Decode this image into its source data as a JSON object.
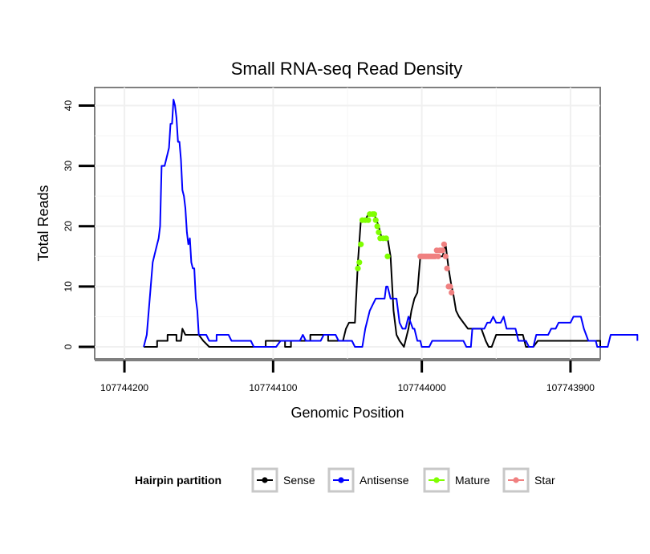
{
  "chart_data": {
    "type": "line",
    "title": "Small RNA-seq Read Density",
    "xlabel": "Genomic Position",
    "ylabel": "Total Reads",
    "xlim": [
      107744220,
      107743880
    ],
    "ylim": [
      -2,
      43
    ],
    "x_reversed": true,
    "grid": true,
    "x_ticks": [
      {
        "value": 107744200,
        "label": "107744200"
      },
      {
        "value": 107744100,
        "label": "107744100"
      },
      {
        "value": 107744000,
        "label": "107744000"
      },
      {
        "value": 107743900,
        "label": "107743900"
      }
    ],
    "y_ticks": [
      {
        "value": 0,
        "label": "0"
      },
      {
        "value": 10,
        "label": "10"
      },
      {
        "value": 20,
        "label": "20"
      },
      {
        "value": 30,
        "label": "30"
      },
      {
        "value": 40,
        "label": "40"
      }
    ],
    "legend": {
      "title": "Hairpin partition",
      "placement": "bottom",
      "entries": [
        {
          "name": "Sense",
          "color": "#000000"
        },
        {
          "name": "Antisense",
          "color": "#0000ff"
        },
        {
          "name": "Mature",
          "color": "#7fff00"
        },
        {
          "name": "Star",
          "color": "#f08080"
        }
      ]
    },
    "series": [
      {
        "name": "Sense",
        "color": "#000000",
        "points": [
          [
            107744187,
            0
          ],
          [
            107744178,
            0
          ],
          [
            107744178,
            1
          ],
          [
            107744171,
            1
          ],
          [
            107744171,
            2
          ],
          [
            107744165,
            2
          ],
          [
            107744165,
            1
          ],
          [
            107744162,
            1
          ],
          [
            107744161,
            3
          ],
          [
            107744159,
            2
          ],
          [
            107744150,
            2
          ],
          [
            107744147,
            1
          ],
          [
            107744143,
            0
          ],
          [
            107744105,
            0
          ],
          [
            107744105,
            1
          ],
          [
            107744098,
            1
          ],
          [
            107744092,
            1
          ],
          [
            107744092,
            0
          ],
          [
            107744088,
            0
          ],
          [
            107744088,
            1
          ],
          [
            107744075,
            1
          ],
          [
            107744075,
            2
          ],
          [
            107744063,
            2
          ],
          [
            107744063,
            1
          ],
          [
            107744053,
            1
          ],
          [
            107744051,
            3
          ],
          [
            107744049,
            4
          ],
          [
            107744045,
            4
          ],
          [
            107744043,
            14
          ],
          [
            107744041,
            21
          ],
          [
            107744038,
            21
          ],
          [
            107744036,
            22
          ],
          [
            107744032,
            22
          ],
          [
            107744029,
            20
          ],
          [
            107744027,
            18
          ],
          [
            107744023,
            18
          ],
          [
            107744021,
            15
          ],
          [
            107744019,
            6
          ],
          [
            107744017,
            2
          ],
          [
            107744015,
            1
          ],
          [
            107744012,
            0
          ],
          [
            107744009,
            3
          ],
          [
            107744007,
            6
          ],
          [
            107744005,
            8
          ],
          [
            107744003,
            9
          ],
          [
            107744001,
            15
          ],
          [
            107743990,
            15
          ],
          [
            107743986,
            15
          ],
          [
            107743985,
            16
          ],
          [
            107743984,
            17
          ],
          [
            107743983,
            15
          ],
          [
            107743982,
            13
          ],
          [
            107743980,
            10
          ],
          [
            107743979,
            9
          ],
          [
            107743977,
            6
          ],
          [
            107743975,
            5
          ],
          [
            107743972,
            4
          ],
          [
            107743969,
            3
          ],
          [
            107743960,
            3
          ],
          [
            107743957,
            1
          ],
          [
            107743955,
            0
          ],
          [
            107743953,
            0
          ],
          [
            107743950,
            2
          ],
          [
            107743932,
            2
          ],
          [
            107743930,
            0
          ],
          [
            107743925,
            0
          ],
          [
            107743922,
            1
          ],
          [
            107743880,
            1
          ],
          [
            107743880,
            0
          ],
          [
            107743877,
            0
          ]
        ]
      },
      {
        "name": "Antisense",
        "color": "#0000ff",
        "points": [
          [
            107744187,
            0
          ],
          [
            107744185,
            2
          ],
          [
            107744183,
            8
          ],
          [
            107744181,
            14
          ],
          [
            107744180,
            15
          ],
          [
            107744178,
            17
          ],
          [
            107744177,
            18
          ],
          [
            107744176,
            20
          ],
          [
            107744175,
            30
          ],
          [
            107744173,
            30
          ],
          [
            107744171,
            32
          ],
          [
            107744170,
            33
          ],
          [
            107744169,
            37
          ],
          [
            107744168,
            37
          ],
          [
            107744167,
            41
          ],
          [
            107744166,
            40
          ],
          [
            107744165,
            38
          ],
          [
            107744164,
            34
          ],
          [
            107744163,
            34
          ],
          [
            107744162,
            31
          ],
          [
            107744161,
            26
          ],
          [
            107744160,
            25
          ],
          [
            107744159,
            23
          ],
          [
            107744158,
            19
          ],
          [
            107744157,
            17
          ],
          [
            107744156,
            18
          ],
          [
            107744155,
            14
          ],
          [
            107744154,
            13
          ],
          [
            107744153,
            13
          ],
          [
            107744152,
            8
          ],
          [
            107744151,
            6
          ],
          [
            107744150,
            2
          ],
          [
            107744145,
            2
          ],
          [
            107744143,
            1
          ],
          [
            107744138,
            1
          ],
          [
            107744138,
            2
          ],
          [
            107744130,
            2
          ],
          [
            107744128,
            1
          ],
          [
            107744115,
            1
          ],
          [
            107744113,
            0
          ],
          [
            107744100,
            0
          ],
          [
            107744098,
            0
          ],
          [
            107744095,
            1
          ],
          [
            107744082,
            1
          ],
          [
            107744080,
            2
          ],
          [
            107744078,
            1
          ],
          [
            107744068,
            1
          ],
          [
            107744066,
            2
          ],
          [
            107744058,
            2
          ],
          [
            107744056,
            1
          ],
          [
            107744047,
            1
          ],
          [
            107744045,
            0
          ],
          [
            107744040,
            0
          ],
          [
            107744038,
            3
          ],
          [
            107744035,
            6
          ],
          [
            107744031,
            8
          ],
          [
            107744025,
            8
          ],
          [
            107744024,
            10
          ],
          [
            107744023,
            10
          ],
          [
            107744021,
            8
          ],
          [
            107744017,
            8
          ],
          [
            107744015,
            4
          ],
          [
            107744013,
            3
          ],
          [
            107744011,
            3
          ],
          [
            107744009,
            5
          ],
          [
            107744006,
            3
          ],
          [
            107744005,
            3
          ],
          [
            107744003,
            1
          ],
          [
            107744001,
            1
          ],
          [
            107744000,
            0
          ],
          [
            107743995,
            0
          ],
          [
            107743993,
            1
          ],
          [
            107743972,
            1
          ],
          [
            107743970,
            0
          ],
          [
            107743967,
            0
          ],
          [
            107743966,
            3
          ],
          [
            107743958,
            3
          ],
          [
            107743956,
            4
          ],
          [
            107743954,
            4
          ],
          [
            107743952,
            5
          ],
          [
            107743950,
            4
          ],
          [
            107743947,
            4
          ],
          [
            107743945,
            5
          ],
          [
            107743943,
            3
          ],
          [
            107743937,
            3
          ],
          [
            107743935,
            1
          ],
          [
            107743930,
            1
          ],
          [
            107743928,
            0
          ],
          [
            107743925,
            0
          ],
          [
            107743923,
            2
          ],
          [
            107743915,
            2
          ],
          [
            107743913,
            3
          ],
          [
            107743910,
            3
          ],
          [
            107743908,
            4
          ],
          [
            107743900,
            4
          ],
          [
            107743898,
            5
          ],
          [
            107743893,
            5
          ],
          [
            107743891,
            3
          ],
          [
            107743888,
            1
          ],
          [
            107743883,
            1
          ],
          [
            107743882,
            0
          ],
          [
            107743875,
            0
          ],
          [
            107743873,
            2
          ],
          [
            107743855,
            2
          ],
          [
            107743855,
            1
          ]
        ]
      },
      {
        "name": "Mature",
        "color": "#7fff00",
        "points": [
          [
            107744043,
            13
          ],
          [
            107744042,
            14
          ],
          [
            107744041,
            17
          ],
          [
            107744040,
            21
          ],
          [
            107744038,
            21
          ],
          [
            107744036,
            21
          ],
          [
            107744035,
            22
          ],
          [
            107744033,
            22
          ],
          [
            107744032,
            22
          ],
          [
            107744031,
            21
          ],
          [
            107744030,
            20
          ],
          [
            107744029,
            19
          ],
          [
            107744028,
            18
          ],
          [
            107744026,
            18
          ],
          [
            107744024,
            18
          ],
          [
            107744023,
            15
          ]
        ]
      },
      {
        "name": "Star",
        "color": "#f08080",
        "points": [
          [
            107744001,
            15
          ],
          [
            107744000,
            15
          ],
          [
            107743999,
            15
          ],
          [
            107743998,
            15
          ],
          [
            107743997,
            15
          ],
          [
            107743996,
            15
          ],
          [
            107743995,
            15
          ],
          [
            107743994,
            15
          ],
          [
            107743993,
            15
          ],
          [
            107743992,
            15
          ],
          [
            107743991,
            15
          ],
          [
            107743990,
            16
          ],
          [
            107743989,
            15
          ],
          [
            107743988,
            16
          ],
          [
            107743987,
            16
          ],
          [
            107743986,
            16
          ],
          [
            107743985,
            17
          ],
          [
            107743984,
            15
          ],
          [
            107743983,
            13
          ],
          [
            107743982,
            10
          ],
          [
            107743981,
            10
          ],
          [
            107743980,
            9
          ]
        ]
      }
    ]
  }
}
